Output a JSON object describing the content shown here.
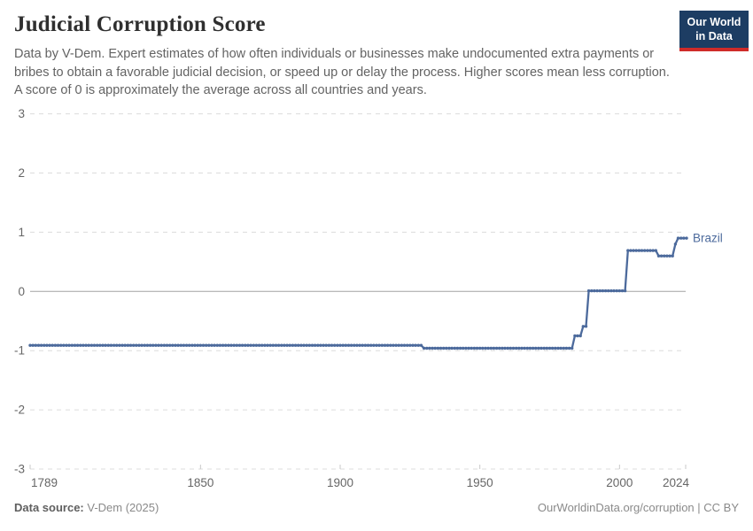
{
  "header": {
    "title": "Judicial Corruption Score",
    "subtitle": "Data by V-Dem. Expert estimates of how often individuals or businesses make undocumented extra payments or bribes to obtain a favorable judicial decision, or speed up or delay the process. Higher scores mean less corruption. A score of 0 is approximately the average across all countries and years.",
    "logo": {
      "line1": "Our World",
      "line2": "in Data",
      "bg_color": "#1d3d63",
      "accent_color": "#cf2b29"
    }
  },
  "chart_data": {
    "type": "line",
    "title": "Judicial Corruption Score",
    "entity": "Brazil",
    "line_color": "#4c6a9c",
    "interpolation": "step",
    "grid": true,
    "legend_position": "end-of-line",
    "x": {
      "min": 1789,
      "max": 2024,
      "ticks": [
        1789,
        1850,
        1900,
        1950,
        2000,
        2024
      ]
    },
    "y": {
      "min": -3,
      "max": 3,
      "ticks": [
        3,
        2,
        1,
        0,
        -1,
        -2,
        -3
      ]
    },
    "segments": [
      {
        "from": 1789,
        "to": 1929,
        "value": -0.91
      },
      {
        "from": 1930,
        "to": 1983,
        "value": -0.96
      },
      {
        "from": 1984,
        "to": 1986,
        "value": -0.75
      },
      {
        "from": 1987,
        "to": 1988,
        "value": -0.59
      },
      {
        "from": 1989,
        "to": 2002,
        "value": 0.01
      },
      {
        "from": 2003,
        "to": 2013,
        "value": 0.69
      },
      {
        "from": 2014,
        "to": 2019,
        "value": 0.6
      },
      {
        "from": 2020,
        "to": 2020,
        "value": 0.8
      },
      {
        "from": 2021,
        "to": 2024,
        "value": 0.9
      }
    ]
  },
  "footer": {
    "source_label": "Data source:",
    "source_value": " V-Dem (2025)",
    "citation": "OurWorldinData.org/corruption | CC BY"
  }
}
